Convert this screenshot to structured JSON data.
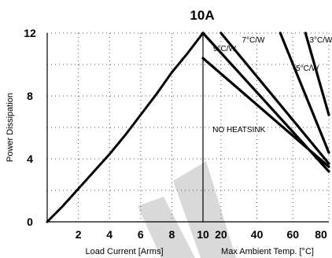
{
  "chart_data": [
    {
      "panel": "load",
      "type": "line",
      "title": "10A",
      "ylabel": "Power Dissipation",
      "xlabel": "Load Current  [Arms]",
      "ylim": [
        0,
        12
      ],
      "xlim": [
        0,
        10
      ],
      "yticks": [
        "0",
        "4",
        "8",
        "12"
      ],
      "xticks": [
        "2",
        "4",
        "6",
        "8",
        "10"
      ],
      "grid": true,
      "series": [
        {
          "x": [
            0,
            1,
            2,
            3,
            4,
            5,
            6,
            7,
            8,
            9,
            10
          ],
          "values": [
            0,
            1.0,
            2.1,
            3.2,
            4.3,
            5.5,
            6.8,
            8.1,
            9.5,
            10.7,
            12.0
          ]
        }
      ]
    },
    {
      "panel": "ambient",
      "type": "line",
      "xlabel": "Max Ambient Temp. [°C]",
      "ylim": [
        0,
        12
      ],
      "xlim": [
        10,
        80
      ],
      "xticks": [
        "20",
        "40",
        "60",
        "80"
      ],
      "xtick_values": [
        20,
        40,
        60,
        80
      ],
      "grid": true,
      "series": [
        {
          "name": "9°C/W",
          "x": [
            10,
            80
          ],
          "values": [
            10.4,
            3.5
          ]
        },
        {
          "name": "7°C/W",
          "x": [
            20,
            80
          ],
          "values": [
            12.0,
            3.7
          ]
        },
        {
          "name": "5°C/W",
          "x": [
            53,
            80
          ],
          "values": [
            12.0,
            4.4
          ]
        },
        {
          "name": "3°C/W",
          "x": [
            67,
            80
          ],
          "values": [
            12.0,
            6.8
          ]
        },
        {
          "name": "NO HEATSINK",
          "x": [
            10,
            80
          ],
          "values": [
            12.0,
            3.2
          ]
        }
      ],
      "annotations": [
        {
          "text": "9°C/W",
          "x": 22,
          "y": 10.85
        },
        {
          "text": "7°C/W",
          "x": 38,
          "y": 11.4
        },
        {
          "text": "3°C/W",
          "x": 76,
          "y": 11.4
        },
        {
          "text": "5°C/W",
          "x": 68,
          "y": 9.6
        },
        {
          "text": "NO HEATSINK",
          "x": 30,
          "y": 5.7
        }
      ]
    }
  ],
  "colors": {
    "ink": "#000000",
    "deco": "#d9d9d9"
  }
}
